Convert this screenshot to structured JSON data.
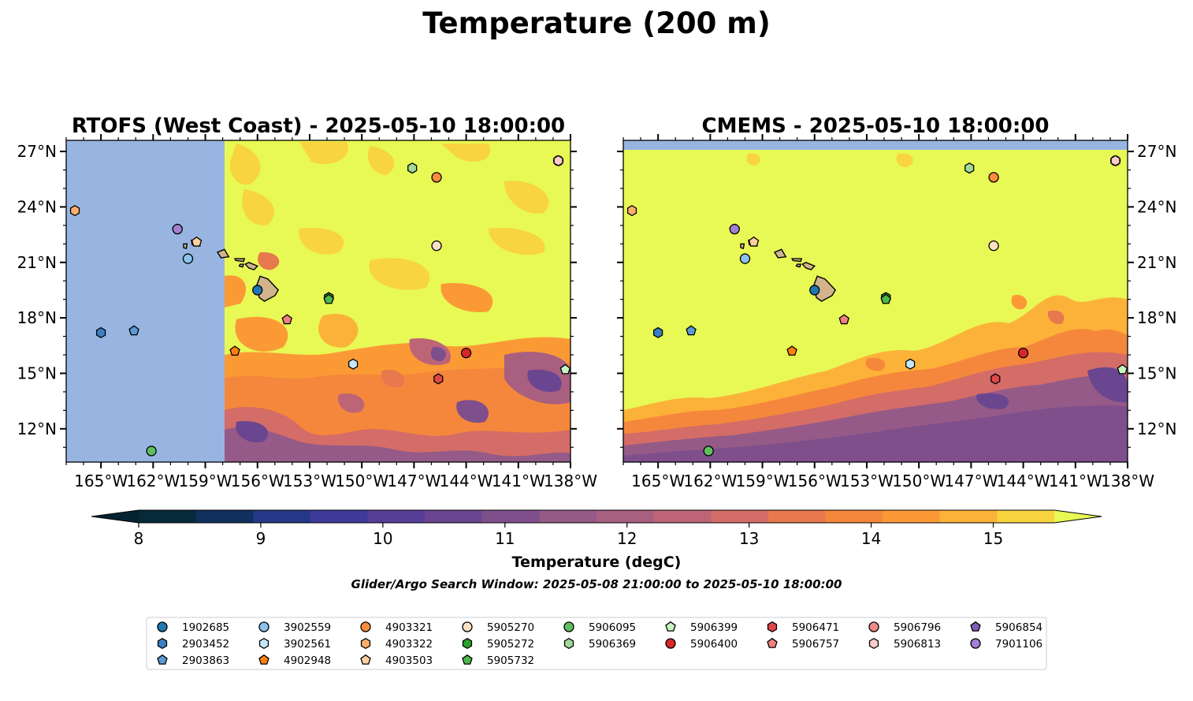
{
  "figure": {
    "title": "Temperature (200 m)",
    "search_window": "Glider/Argo Search Window: 2025-05-08 21:00:00 to 2025-05-10 18:00:00"
  },
  "panels": [
    {
      "id": "rtofs",
      "title": "RTOFS (West Coast) - 2025-05-10 18:00:00",
      "lat_labels_side": "left",
      "field_style": "rtofs"
    },
    {
      "id": "cmems",
      "title": "CMEMS - 2025-05-10 18:00:00",
      "lat_labels_side": "right",
      "field_style": "cmems"
    }
  ],
  "map": {
    "lon_range": [
      -167,
      -138
    ],
    "lat_range": [
      10.2,
      27.6
    ],
    "lon_ticks": [
      "165°W",
      "162°W",
      "159°W",
      "156°W",
      "153°W",
      "150°W",
      "147°W",
      "144°W",
      "141°W",
      "138°W"
    ],
    "lon_tick_values": [
      -165,
      -162,
      -159,
      -156,
      -153,
      -150,
      -147,
      -144,
      -141,
      -138
    ],
    "lat_ticks": [
      "12°N",
      "15°N",
      "18°N",
      "21°N",
      "24°N",
      "27°N"
    ],
    "lat_tick_values": [
      12,
      15,
      18,
      21,
      24,
      27
    ],
    "land_color": "#d2b48c",
    "nodata_color": "#98b5e1"
  },
  "colorbar": {
    "label": "Temperature (degC)",
    "tick_labels": [
      "8",
      "9",
      "10",
      "11",
      "12",
      "13",
      "14",
      "15"
    ],
    "tick_values": [
      8,
      9,
      10,
      11,
      12,
      13,
      14,
      15
    ],
    "range": [
      8,
      15.5
    ],
    "colors": [
      "#062a3a",
      "#12305e",
      "#253887",
      "#3d3a99",
      "#563e99",
      "#6b4690",
      "#7f4f8c",
      "#955a87",
      "#a85f80",
      "#bd6577",
      "#d46c67",
      "#e8784e",
      "#f5873c",
      "#fb9a35",
      "#fcb238",
      "#f8d43e"
    ],
    "extend_low_color": "#032331",
    "extend_high_color": "#e8f855"
  },
  "floats": [
    {
      "id": "1902685",
      "marker": "circle",
      "color": "#1f77b4",
      "lon": -156.0,
      "lat": 19.5
    },
    {
      "id": "2903452",
      "marker": "hexagon",
      "color": "#3a7fc1",
      "lon": -165.0,
      "lat": 17.2
    },
    {
      "id": "2903863",
      "marker": "pentagon",
      "color": "#5b9ad4",
      "lon": -163.1,
      "lat": 17.3
    },
    {
      "id": "3902559",
      "marker": "circle",
      "color": "#8cc2eb",
      "lon": -160.0,
      "lat": 21.2
    },
    {
      "id": "3902561",
      "marker": "hexagon",
      "color": "#c6e6fa",
      "lon": -150.5,
      "lat": 15.5
    },
    {
      "id": "4902948",
      "marker": "pentagon",
      "color": "#ff7f0e",
      "lon": -157.3,
      "lat": 16.2
    },
    {
      "id": "4903321",
      "marker": "circle",
      "color": "#fd8d3c",
      "lon": -145.7,
      "lat": 25.6
    },
    {
      "id": "4903322",
      "marker": "hexagon",
      "color": "#fdae6b",
      "lon": -166.5,
      "lat": 23.8
    },
    {
      "id": "4903503",
      "marker": "pentagon",
      "color": "#fdd0a2",
      "lon": -159.5,
      "lat": 22.1
    },
    {
      "id": "5905270",
      "marker": "circle",
      "color": "#fde0c5",
      "lon": -145.7,
      "lat": 21.9
    },
    {
      "id": "5905272",
      "marker": "hexagon",
      "color": "#2ca02c",
      "lon": -151.9,
      "lat": 19.1
    },
    {
      "id": "5905732",
      "marker": "pentagon",
      "color": "#4db84d",
      "lon": -151.9,
      "lat": 19.0
    },
    {
      "id": "5906095",
      "marker": "circle",
      "color": "#60c060",
      "lon": -162.1,
      "lat": 10.8
    },
    {
      "id": "5906369",
      "marker": "hexagon",
      "color": "#a1d99b",
      "lon": -147.1,
      "lat": 26.1
    },
    {
      "id": "5906399",
      "marker": "pentagon",
      "color": "#c7f5c0",
      "lon": -138.3,
      "lat": 15.2
    },
    {
      "id": "5906400",
      "marker": "circle",
      "color": "#d62728",
      "lon": -144.0,
      "lat": 16.1
    },
    {
      "id": "5906471",
      "marker": "hexagon",
      "color": "#e04848",
      "lon": -145.6,
      "lat": 14.7
    },
    {
      "id": "5906757",
      "marker": "pentagon",
      "color": "#f08080",
      "lon": -154.3,
      "lat": 17.9
    },
    {
      "id": "5906796",
      "marker": "circle",
      "color": "#f08a8a",
      "lon": -138.7,
      "lat": 26.5
    },
    {
      "id": "5906813",
      "marker": "hexagon",
      "color": "#fbcaca",
      "lon": -138.7,
      "lat": 26.5
    },
    {
      "id": "5906854",
      "marker": "pentagon",
      "color": "#7e5bb7",
      "lon": -160.6,
      "lat": 22.8
    },
    {
      "id": "7901106",
      "marker": "circle",
      "color": "#a27fd0",
      "lon": -160.6,
      "lat": 22.8
    }
  ],
  "legend_columns": [
    [
      "1902685",
      "2903452",
      "2903863"
    ],
    [
      "3902559",
      "3902561",
      "4902948"
    ],
    [
      "4903321",
      "4903322",
      "4903503"
    ],
    [
      "5905270",
      "5905272",
      "5905732"
    ],
    [
      "5906095",
      "5906369"
    ],
    [
      "5906399",
      "5906400"
    ],
    [
      "5906471",
      "5906757"
    ],
    [
      "5906796",
      "5906813"
    ],
    [
      "5906854",
      "7901106"
    ]
  ]
}
